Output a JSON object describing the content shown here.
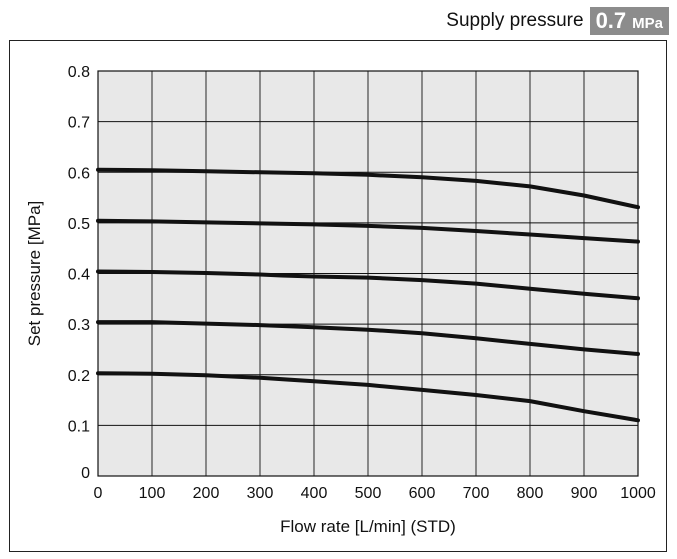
{
  "header": {
    "label": "Supply pressure",
    "value": "0.7",
    "unit": "MPa",
    "badge_color": "#8c8c8c"
  },
  "chart_data": {
    "type": "line",
    "title": "",
    "xlabel": "Flow rate [L/min] (STD)",
    "ylabel": "Set pressure [MPa]",
    "xlim": [
      0,
      1000
    ],
    "ylim": [
      0,
      0.8
    ],
    "xticks": [
      0,
      100,
      200,
      300,
      400,
      500,
      600,
      700,
      800,
      900,
      1000
    ],
    "yticks": [
      0,
      0.1,
      0.2,
      0.3,
      0.4,
      0.5,
      0.6,
      0.7,
      0.8
    ],
    "grid": true,
    "plot_background": "#e8e8e8",
    "line_color": "#111111",
    "series": [
      {
        "x": [
          0,
          100,
          200,
          300,
          400,
          500,
          600,
          700,
          800,
          900,
          1000
        ],
        "y": [
          0.605,
          0.604,
          0.602,
          0.6,
          0.598,
          0.595,
          0.59,
          0.583,
          0.572,
          0.554,
          0.531
        ]
      },
      {
        "x": [
          0,
          100,
          200,
          300,
          400,
          500,
          600,
          700,
          800,
          900,
          1000
        ],
        "y": [
          0.504,
          0.503,
          0.501,
          0.499,
          0.497,
          0.494,
          0.49,
          0.484,
          0.477,
          0.47,
          0.463
        ]
      },
      {
        "x": [
          0,
          100,
          200,
          300,
          340,
          400,
          500,
          600,
          700,
          800,
          900,
          1000
        ],
        "y": [
          0.404,
          0.403,
          0.401,
          0.398,
          0.396,
          0.394,
          0.392,
          0.387,
          0.38,
          0.37,
          0.36,
          0.351
        ]
      },
      {
        "x": [
          0,
          100,
          200,
          300,
          400,
          500,
          600,
          700,
          800,
          900,
          1000
        ],
        "y": [
          0.304,
          0.304,
          0.301,
          0.298,
          0.294,
          0.289,
          0.282,
          0.272,
          0.261,
          0.25,
          0.241
        ]
      },
      {
        "x": [
          0,
          100,
          200,
          300,
          400,
          500,
          600,
          700,
          800,
          900,
          1000
        ],
        "y": [
          0.203,
          0.202,
          0.199,
          0.194,
          0.187,
          0.18,
          0.17,
          0.16,
          0.148,
          0.128,
          0.11
        ]
      }
    ]
  }
}
